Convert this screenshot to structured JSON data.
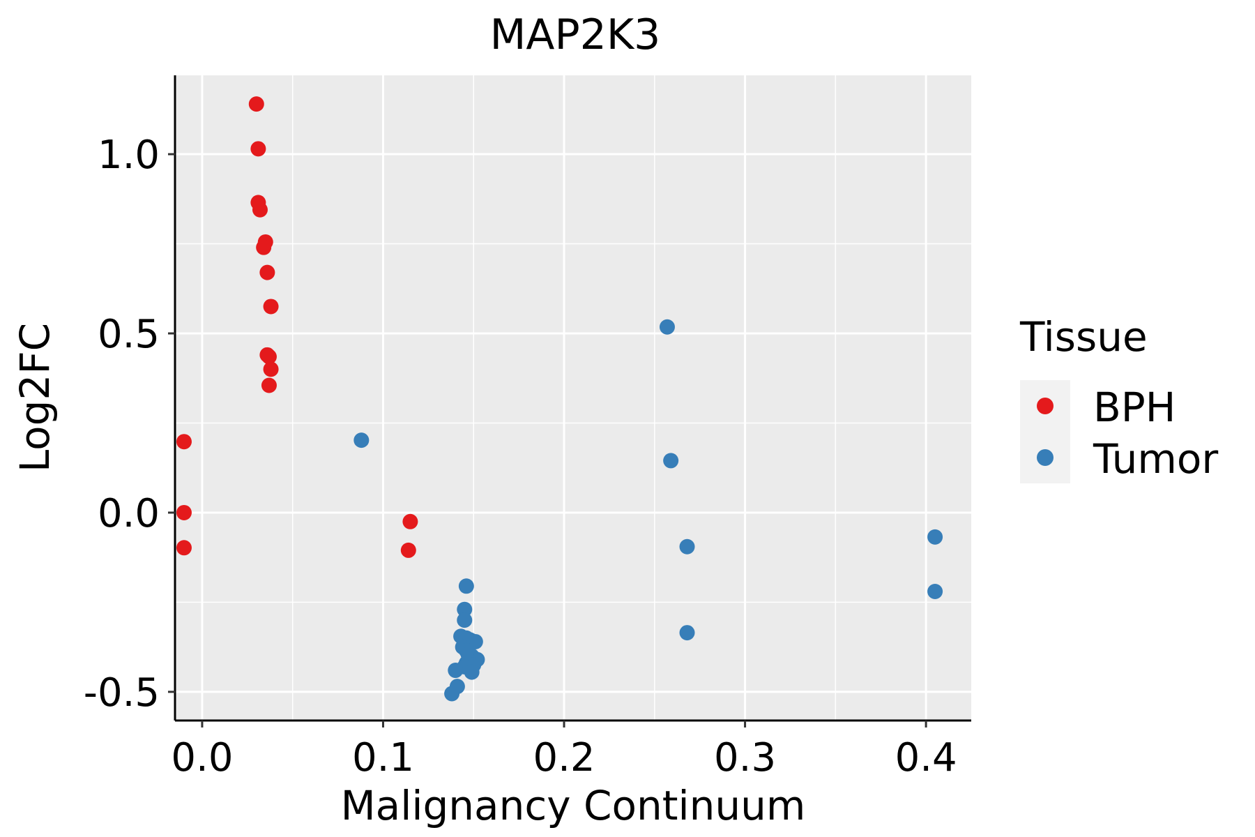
{
  "chart_data": {
    "type": "scatter",
    "title": "MAP2K3",
    "xlabel": "Malignancy Continuum",
    "ylabel": "Log2FC",
    "xlim": [
      -0.015,
      0.425
    ],
    "ylim": [
      -0.58,
      1.22
    ],
    "xticks": [
      0.0,
      0.1,
      0.2,
      0.3,
      0.4
    ],
    "xtick_labels": [
      "0.0",
      "0.1",
      "0.2",
      "0.3",
      "0.4"
    ],
    "yticks": [
      -0.5,
      0.0,
      0.5,
      1.0
    ],
    "ytick_labels": [
      "-0.5",
      "0.0",
      "0.5",
      "1.0"
    ],
    "grid": true,
    "legend": {
      "title": "Tissue",
      "position": "right"
    },
    "series": [
      {
        "name": "BPH",
        "color": "#E41A1C",
        "points": [
          [
            0.03,
            1.14
          ],
          [
            0.031,
            1.015
          ],
          [
            0.031,
            0.865
          ],
          [
            0.032,
            0.845
          ],
          [
            0.035,
            0.755
          ],
          [
            0.034,
            0.74
          ],
          [
            0.036,
            0.67
          ],
          [
            0.038,
            0.575
          ],
          [
            0.036,
            0.44
          ],
          [
            0.037,
            0.435
          ],
          [
            0.038,
            0.4
          ],
          [
            0.037,
            0.355
          ],
          [
            -0.01,
            0.198
          ],
          [
            -0.01,
            0.0
          ],
          [
            -0.01,
            -0.098
          ],
          [
            0.115,
            -0.025
          ],
          [
            0.114,
            -0.105
          ]
        ]
      },
      {
        "name": "Tumor",
        "color": "#377EB8",
        "points": [
          [
            0.257,
            0.518
          ],
          [
            0.088,
            0.202
          ],
          [
            0.259,
            0.145
          ],
          [
            0.268,
            -0.095
          ],
          [
            0.268,
            -0.335
          ],
          [
            0.405,
            -0.068
          ],
          [
            0.405,
            -0.22
          ],
          [
            0.146,
            -0.205
          ],
          [
            0.145,
            -0.27
          ],
          [
            0.145,
            -0.3
          ],
          [
            0.143,
            -0.345
          ],
          [
            0.146,
            -0.35
          ],
          [
            0.148,
            -0.355
          ],
          [
            0.151,
            -0.36
          ],
          [
            0.144,
            -0.375
          ],
          [
            0.146,
            -0.385
          ],
          [
            0.147,
            -0.395
          ],
          [
            0.149,
            -0.4
          ],
          [
            0.152,
            -0.41
          ],
          [
            0.148,
            -0.415
          ],
          [
            0.146,
            -0.42
          ],
          [
            0.15,
            -0.425
          ],
          [
            0.145,
            -0.43
          ],
          [
            0.149,
            -0.445
          ],
          [
            0.14,
            -0.44
          ],
          [
            0.141,
            -0.485
          ],
          [
            0.138,
            -0.505
          ]
        ]
      }
    ]
  }
}
